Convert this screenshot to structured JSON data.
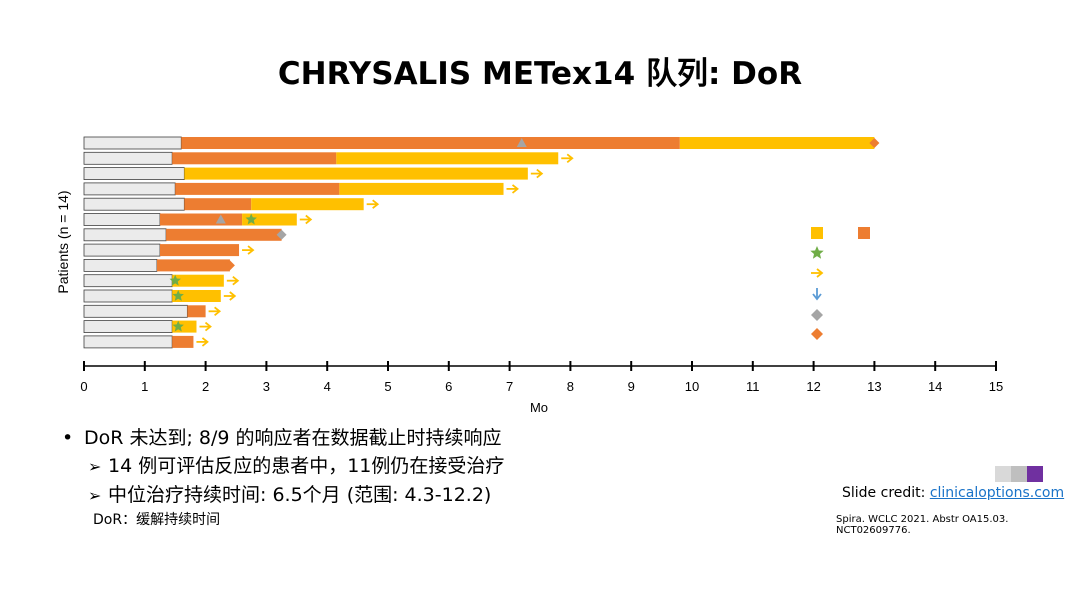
{
  "title": "CHRYSALIS METex14 队列: DoR",
  "bullets": {
    "main": "DoR 未达到; 8/9 的响应者在数据截止时持续响应",
    "sub1": "14 例可评估反应的患者中，11例仍在接受治疗",
    "sub2": "中位治疗持续时间: 6.5个月 (范围: 4.3-12.2)"
  },
  "footnote": "DoR：缓解持续时间",
  "credit": {
    "label": "Slide credit: ",
    "link": "clinicaloptions.com"
  },
  "citation": "Spira. WCLC 2021. Abstr OA15.03. NCT02609776.",
  "chart_data": {
    "type": "bar",
    "orientation": "horizontal-swimmer",
    "ylabel": "Patients (n = 14)",
    "xlabel": "Mo",
    "xlim": [
      0,
      15
    ],
    "xticks": [
      0,
      1,
      2,
      3,
      4,
      5,
      6,
      7,
      8,
      9,
      10,
      11,
      12,
      13,
      14,
      15
    ],
    "colors": {
      "pre_response": "#ebebeb",
      "orange": "#ed7d31",
      "yellow": "#ffc000",
      "green": "#70ad47",
      "gray": "#a5a5a5",
      "blue": "#5b9bd5"
    },
    "patients": [
      {
        "pre": 1.6,
        "segments": [
          {
            "color": "orange",
            "start": 1.6,
            "end": 9.8
          },
          {
            "color": "yellow",
            "start": 9.8,
            "end": 13.0
          }
        ],
        "markers": [
          {
            "type": "gray-triangle",
            "x": 7.2
          }
        ],
        "end": "orange-diamond"
      },
      {
        "pre": 1.45,
        "segments": [
          {
            "color": "orange",
            "start": 1.45,
            "end": 4.15
          },
          {
            "color": "yellow",
            "start": 4.15,
            "end": 7.8
          }
        ],
        "markers": [],
        "end": "arrow"
      },
      {
        "pre": 1.65,
        "segments": [
          {
            "color": "yellow",
            "start": 1.65,
            "end": 7.3
          }
        ],
        "markers": [],
        "end": "arrow"
      },
      {
        "pre": 1.5,
        "segments": [
          {
            "color": "orange",
            "start": 1.5,
            "end": 4.2
          },
          {
            "color": "yellow",
            "start": 4.2,
            "end": 6.9
          }
        ],
        "markers": [],
        "end": "arrow"
      },
      {
        "pre": 1.65,
        "segments": [
          {
            "color": "orange",
            "start": 1.65,
            "end": 2.75
          },
          {
            "color": "yellow",
            "start": 2.75,
            "end": 4.6
          }
        ],
        "markers": [],
        "end": "arrow"
      },
      {
        "pre": 1.25,
        "segments": [
          {
            "color": "orange",
            "start": 1.25,
            "end": 2.6
          },
          {
            "color": "yellow",
            "start": 2.6,
            "end": 3.5
          }
        ],
        "markers": [
          {
            "type": "gray-triangle",
            "x": 2.25
          },
          {
            "type": "green-star",
            "x": 2.75
          }
        ],
        "end": "arrow"
      },
      {
        "pre": 1.35,
        "segments": [
          {
            "color": "orange",
            "start": 1.35,
            "end": 3.25
          }
        ],
        "markers": [],
        "end": "gray-diamond"
      },
      {
        "pre": 1.25,
        "segments": [
          {
            "color": "orange",
            "start": 1.25,
            "end": 2.55
          }
        ],
        "markers": [],
        "end": "arrow"
      },
      {
        "pre": 1.2,
        "segments": [
          {
            "color": "orange",
            "start": 1.2,
            "end": 2.4
          }
        ],
        "markers": [],
        "end": "orange-diamond"
      },
      {
        "pre": 1.45,
        "segments": [
          {
            "color": "yellow",
            "start": 1.45,
            "end": 2.3
          }
        ],
        "markers": [
          {
            "type": "green-star",
            "x": 1.5
          }
        ],
        "end": "arrow"
      },
      {
        "pre": 1.45,
        "segments": [
          {
            "color": "yellow",
            "start": 1.45,
            "end": 2.25
          }
        ],
        "markers": [
          {
            "type": "green-star",
            "x": 1.55
          }
        ],
        "end": "arrow"
      },
      {
        "pre": 1.7,
        "segments": [
          {
            "color": "orange",
            "start": 1.7,
            "end": 2.0
          }
        ],
        "markers": [],
        "end": "arrow"
      },
      {
        "pre": 1.45,
        "segments": [
          {
            "color": "yellow",
            "start": 1.45,
            "end": 1.85
          }
        ],
        "markers": [
          {
            "type": "green-star",
            "x": 1.55
          }
        ],
        "end": "arrow"
      },
      {
        "pre": 1.45,
        "segments": [
          {
            "color": "orange",
            "start": 1.45,
            "end": 1.8
          }
        ],
        "markers": [],
        "end": "arrow"
      }
    ],
    "legend": {
      "placement": "right",
      "symbols": [
        "yellow-square",
        "orange-square",
        "green-star",
        "yellow-arrow",
        "blue-down-arrow",
        "gray-diamond",
        "orange-diamond"
      ]
    }
  }
}
